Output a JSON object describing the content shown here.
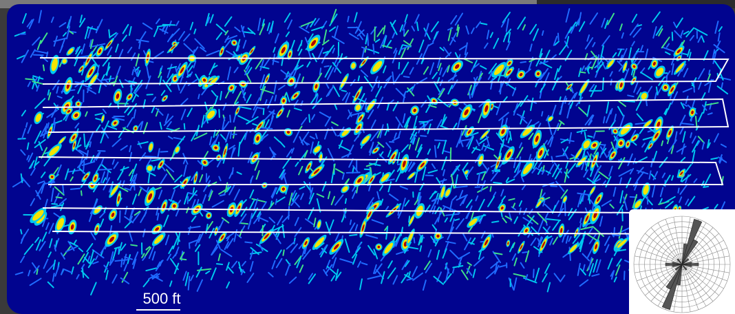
{
  "scale_bar": {
    "label": "500 ft"
  },
  "colors": {
    "background": "#01048f",
    "low": "#1f6bff",
    "mid": "#00c8f0",
    "high": "#f4e400",
    "peak": "#b00000",
    "track": "#ffffff"
  },
  "icons": {
    "rose_diagram": "rose-diagram-icon"
  }
}
